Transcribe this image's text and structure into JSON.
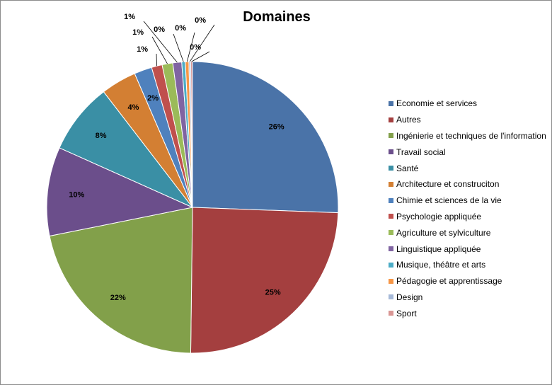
{
  "chart_data": {
    "type": "pie",
    "title": "Domaines",
    "legend_position": "right",
    "series": [
      {
        "name": "Economie et services",
        "value": 26,
        "label": "26%",
        "color": "#4a73a8"
      },
      {
        "name": "Autres",
        "value": 25,
        "label": "25%",
        "color": "#a43f3f"
      },
      {
        "name": "Ingénierie et techniques de l'information",
        "value": 22,
        "label": "22%",
        "color": "#82a04a"
      },
      {
        "name": "Travail social",
        "value": 10,
        "label": "10%",
        "color": "#6b4e8b"
      },
      {
        "name": "Santé",
        "value": 8,
        "label": "8%",
        "color": "#3a8fa5"
      },
      {
        "name": "Architecture et construciton",
        "value": 4,
        "label": "4%",
        "color": "#d37f33"
      },
      {
        "name": "Chimie et sciences de la vie",
        "value": 2,
        "label": "2%",
        "color": "#4f81bd"
      },
      {
        "name": "Psychologie appliquée",
        "value": 1.2,
        "label": "1%",
        "color": "#c0504d"
      },
      {
        "name": "Agriculture et sylviculture",
        "value": 1.2,
        "label": "1%",
        "color": "#9bbb59"
      },
      {
        "name": "Linguistique appliquée",
        "value": 1.0,
        "label": "1%",
        "color": "#8064a2"
      },
      {
        "name": "Musique, théâtre et arts",
        "value": 0.4,
        "label": "0%",
        "color": "#4bacc6"
      },
      {
        "name": "Pédagogie et apprentissage",
        "value": 0.4,
        "label": "0%",
        "color": "#f79646"
      },
      {
        "name": "Design",
        "value": 0.2,
        "label": "0%",
        "color": "#a6b9d8"
      },
      {
        "name": "Sport",
        "value": 0.2,
        "label": "0%",
        "color": "#d99694"
      }
    ]
  }
}
